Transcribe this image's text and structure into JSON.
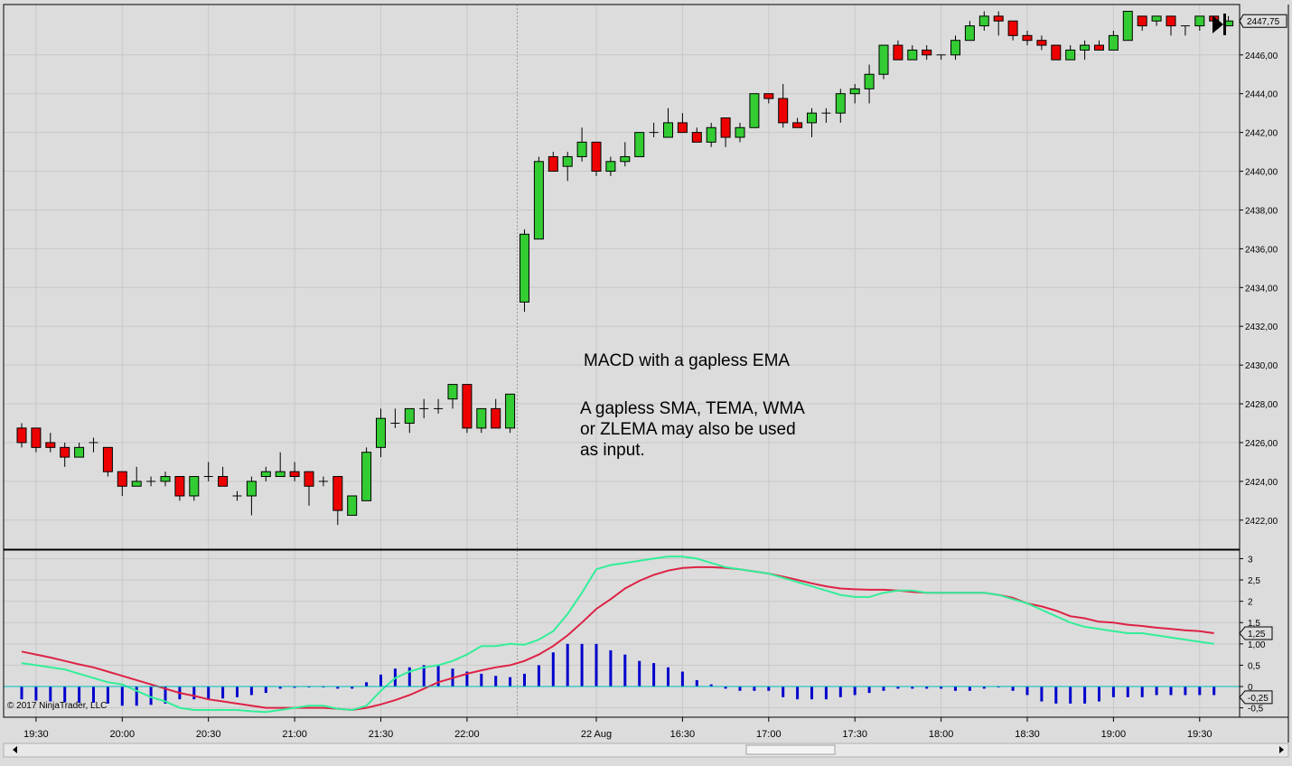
{
  "colors": {
    "background": "#dcdcdc",
    "grid": "#c8c8c8",
    "up_candle": "#33cc33",
    "down_candle": "#ee0000",
    "wick": "#000000",
    "macd_line": "#33ee99",
    "signal_line": "#dd2244",
    "histogram": "#0000cc",
    "zero_line": "#00bbbb"
  },
  "annotation": {
    "title": "MACD with a gapless EMA",
    "line1": "A gapless SMA, TEMA, WMA",
    "line2": "or ZLEMA may also be used",
    "line3": "as input."
  },
  "copyright": "© 2017 NinjaTrader, LLC",
  "toolbar": {
    "scroll_to_end_icon": "scroll-to-end-icon"
  },
  "chart_data": [
    {
      "type": "candlestick",
      "name": "price",
      "ylim": [
        2420.5,
        2448.6
      ],
      "y_ticks": [
        {
          "value": 2422,
          "label": "2422,00"
        },
        {
          "value": 2424,
          "label": "2424,00"
        },
        {
          "value": 2426,
          "label": "2426,00"
        },
        {
          "value": 2428,
          "label": "2428,00"
        },
        {
          "value": 2430,
          "label": "2430,00"
        },
        {
          "value": 2432,
          "label": "2432,00"
        },
        {
          "value": 2434,
          "label": "2434,00"
        },
        {
          "value": 2436,
          "label": "2436,00"
        },
        {
          "value": 2438,
          "label": "2438,00"
        },
        {
          "value": 2440,
          "label": "2440,00"
        },
        {
          "value": 2442,
          "label": "2442,00"
        },
        {
          "value": 2444,
          "label": "2444,00"
        },
        {
          "value": 2446,
          "label": "2446,00"
        }
      ],
      "last_price_label": "2447,75",
      "last_price": 2447.75,
      "x_ticks": [
        {
          "index": 1,
          "label": "19:30"
        },
        {
          "index": 7,
          "label": "20:00"
        },
        {
          "index": 13,
          "label": "20:30"
        },
        {
          "index": 19,
          "label": "21:00"
        },
        {
          "index": 25,
          "label": "21:30"
        },
        {
          "index": 31,
          "label": "22:00"
        },
        {
          "index": 40,
          "label": "22 Aug"
        },
        {
          "index": 46,
          "label": "16:30"
        },
        {
          "index": 52,
          "label": "17:00"
        },
        {
          "index": 58,
          "label": "17:30"
        },
        {
          "index": 64,
          "label": "18:00"
        },
        {
          "index": 70,
          "label": "18:30"
        },
        {
          "index": 76,
          "label": "19:00"
        },
        {
          "index": 82,
          "label": "19:30"
        }
      ],
      "session_break_index": 34.5,
      "candles": [
        [
          2426.75,
          2427.0,
          2425.75,
          2426.0
        ],
        [
          2426.75,
          2426.75,
          2425.5,
          2425.75
        ],
        [
          2426.0,
          2426.5,
          2425.5,
          2425.75
        ],
        [
          2425.75,
          2426.0,
          2424.75,
          2425.25
        ],
        [
          2425.25,
          2426.0,
          2425.25,
          2425.75
        ],
        [
          2426.0,
          2426.25,
          2425.5,
          2426.0
        ],
        [
          2425.75,
          2425.75,
          2424.25,
          2424.5
        ],
        [
          2424.5,
          2424.5,
          2423.25,
          2423.75
        ],
        [
          2423.75,
          2424.75,
          2423.75,
          2424.0
        ],
        [
          2424.0,
          2424.25,
          2423.75,
          2424.0
        ],
        [
          2424.0,
          2424.5,
          2423.75,
          2424.25
        ],
        [
          2424.25,
          2424.25,
          2423.0,
          2423.25
        ],
        [
          2423.25,
          2424.25,
          2423.0,
          2424.25
        ],
        [
          2424.25,
          2425.0,
          2424.0,
          2424.25
        ],
        [
          2424.25,
          2424.75,
          2423.75,
          2423.75
        ],
        [
          2423.25,
          2423.5,
          2423.0,
          2423.25
        ],
        [
          2423.25,
          2424.25,
          2422.25,
          2424.0
        ],
        [
          2424.25,
          2424.75,
          2424.0,
          2424.5
        ],
        [
          2424.25,
          2425.5,
          2424.25,
          2424.5
        ],
        [
          2424.5,
          2425.0,
          2424.0,
          2424.25
        ],
        [
          2424.5,
          2424.5,
          2422.75,
          2423.75
        ],
        [
          2424.0,
          2424.25,
          2423.75,
          2424.0
        ],
        [
          2424.25,
          2424.25,
          2421.75,
          2422.5
        ],
        [
          2422.25,
          2423.25,
          2422.25,
          2423.25
        ],
        [
          2423.0,
          2425.75,
          2423.0,
          2425.5
        ],
        [
          2425.75,
          2427.75,
          2425.25,
          2427.25
        ],
        [
          2427.0,
          2427.75,
          2426.75,
          2427.0
        ],
        [
          2427.0,
          2427.75,
          2426.5,
          2427.75
        ],
        [
          2427.75,
          2428.25,
          2427.25,
          2427.75
        ],
        [
          2427.75,
          2428.25,
          2427.5,
          2427.75
        ],
        [
          2428.25,
          2429.0,
          2427.75,
          2429.0
        ],
        [
          2429.0,
          2429.0,
          2426.5,
          2426.75
        ],
        [
          2426.75,
          2427.75,
          2426.5,
          2427.75
        ],
        [
          2427.75,
          2428.25,
          2426.75,
          2426.75
        ],
        [
          2426.75,
          2428.5,
          2426.5,
          2428.5
        ],
        [
          2433.25,
          2437.0,
          2432.75,
          2436.75
        ],
        [
          2436.5,
          2440.75,
          2436.5,
          2440.5
        ],
        [
          2440.75,
          2441.0,
          2440.0,
          2440.0
        ],
        [
          2440.25,
          2441.0,
          2439.5,
          2440.75
        ],
        [
          2440.75,
          2442.25,
          2440.5,
          2441.5
        ],
        [
          2441.5,
          2441.5,
          2439.75,
          2440.0
        ],
        [
          2440.0,
          2440.75,
          2439.75,
          2440.5
        ],
        [
          2440.5,
          2441.5,
          2440.25,
          2440.75
        ],
        [
          2440.75,
          2442.0,
          2440.75,
          2442.0
        ],
        [
          2442.0,
          2442.5,
          2441.75,
          2442.0
        ],
        [
          2441.75,
          2443.25,
          2441.75,
          2442.5
        ],
        [
          2442.5,
          2443.0,
          2442.0,
          2442.0
        ],
        [
          2442.0,
          2442.25,
          2441.5,
          2441.5
        ],
        [
          2441.5,
          2442.5,
          2441.25,
          2442.25
        ],
        [
          2442.75,
          2442.75,
          2441.25,
          2441.75
        ],
        [
          2441.75,
          2442.5,
          2441.5,
          2442.25
        ],
        [
          2442.25,
          2444.0,
          2442.25,
          2444.0
        ],
        [
          2444.0,
          2444.0,
          2443.5,
          2443.75
        ],
        [
          2443.75,
          2444.5,
          2442.25,
          2442.5
        ],
        [
          2442.5,
          2442.75,
          2442.25,
          2442.25
        ],
        [
          2442.5,
          2443.25,
          2441.75,
          2443.0
        ],
        [
          2443.0,
          2443.25,
          2442.5,
          2443.0
        ],
        [
          2443.0,
          2444.25,
          2442.5,
          2444.0
        ],
        [
          2444.0,
          2444.5,
          2443.5,
          2444.25
        ],
        [
          2444.25,
          2445.5,
          2443.5,
          2445.0
        ],
        [
          2445.0,
          2446.5,
          2444.75,
          2446.5
        ],
        [
          2446.5,
          2446.75,
          2445.75,
          2445.75
        ],
        [
          2445.75,
          2446.5,
          2445.75,
          2446.25
        ],
        [
          2446.25,
          2446.5,
          2445.75,
          2446.0
        ],
        [
          2446.0,
          2446.0,
          2445.75,
          2446.0
        ],
        [
          2446.0,
          2447.0,
          2445.75,
          2446.75
        ],
        [
          2446.75,
          2447.75,
          2446.75,
          2447.5
        ],
        [
          2447.5,
          2448.25,
          2447.25,
          2448.0
        ],
        [
          2448.0,
          2448.25,
          2447.0,
          2447.75
        ],
        [
          2447.75,
          2447.75,
          2446.75,
          2447.0
        ],
        [
          2447.0,
          2447.25,
          2446.5,
          2446.75
        ],
        [
          2446.75,
          2447.0,
          2446.25,
          2446.5
        ],
        [
          2446.5,
          2446.5,
          2445.75,
          2445.75
        ],
        [
          2445.75,
          2446.5,
          2445.75,
          2446.25
        ],
        [
          2446.25,
          2446.75,
          2445.75,
          2446.5
        ],
        [
          2446.5,
          2446.75,
          2446.25,
          2446.25
        ],
        [
          2446.25,
          2447.25,
          2446.25,
          2447.0
        ],
        [
          2446.75,
          2448.25,
          2446.75,
          2448.25
        ],
        [
          2448.0,
          2448.0,
          2447.25,
          2447.5
        ],
        [
          2447.75,
          2448.0,
          2447.5,
          2448.0
        ],
        [
          2448.0,
          2448.0,
          2447.0,
          2447.5
        ],
        [
          2447.5,
          2447.5,
          2447.0,
          2447.5
        ],
        [
          2447.5,
          2448.0,
          2447.25,
          2448.0
        ],
        [
          2448.0,
          2448.0,
          2447.5,
          2447.75
        ],
        [
          2447.5,
          2448.0,
          2447.5,
          2447.75
        ]
      ]
    },
    {
      "type": "line+bar",
      "name": "MACD",
      "ylim": [
        -0.72,
        3.2
      ],
      "y_ticks": [
        {
          "value": 3,
          "label": "3"
        },
        {
          "value": 2.5,
          "label": "2,5"
        },
        {
          "value": 2,
          "label": "2"
        },
        {
          "value": 1.5,
          "label": "1,5"
        },
        {
          "value": 1,
          "label": "1,00"
        },
        {
          "value": 0.5,
          "label": "0,5"
        },
        {
          "value": 0,
          "label": "0"
        },
        {
          "value": -0.5,
          "label": "-0,5"
        }
      ],
      "value_labels": [
        {
          "value": 1.25,
          "label": "1,25"
        },
        {
          "value": -0.25,
          "label": "-0,25"
        }
      ],
      "macd": [
        0.55,
        0.5,
        0.45,
        0.4,
        0.3,
        0.2,
        0.1,
        0.05,
        -0.1,
        -0.25,
        -0.35,
        -0.5,
        -0.55,
        -0.55,
        -0.55,
        -0.55,
        -0.58,
        -0.6,
        -0.55,
        -0.5,
        -0.45,
        -0.45,
        -0.52,
        -0.55,
        -0.45,
        -0.1,
        0.2,
        0.35,
        0.45,
        0.5,
        0.6,
        0.75,
        0.95,
        0.95,
        1.0,
        0.98,
        1.1,
        1.3,
        1.7,
        2.2,
        2.75,
        2.85,
        2.9,
        2.95,
        3.0,
        3.05,
        3.05,
        3.0,
        2.9,
        2.8,
        2.75,
        2.7,
        2.65,
        2.55,
        2.45,
        2.35,
        2.25,
        2.15,
        2.1,
        2.1,
        2.2,
        2.25,
        2.25,
        2.2,
        2.2,
        2.2,
        2.2,
        2.2,
        2.15,
        2.05,
        1.95,
        1.8,
        1.65,
        1.5,
        1.4,
        1.35,
        1.3,
        1.25,
        1.25,
        1.2,
        1.15,
        1.1,
        1.05,
        1.0
      ],
      "signal": [
        0.82,
        0.75,
        0.68,
        0.6,
        0.52,
        0.45,
        0.35,
        0.25,
        0.15,
        0.05,
        -0.05,
        -0.15,
        -0.22,
        -0.3,
        -0.35,
        -0.4,
        -0.45,
        -0.5,
        -0.5,
        -0.5,
        -0.5,
        -0.5,
        -0.52,
        -0.55,
        -0.5,
        -0.42,
        -0.32,
        -0.2,
        -0.05,
        0.1,
        0.2,
        0.3,
        0.38,
        0.45,
        0.5,
        0.6,
        0.75,
        0.95,
        1.2,
        1.5,
        1.82,
        2.05,
        2.3,
        2.48,
        2.62,
        2.72,
        2.78,
        2.8,
        2.8,
        2.78,
        2.75,
        2.7,
        2.65,
        2.58,
        2.5,
        2.42,
        2.35,
        2.3,
        2.28,
        2.27,
        2.27,
        2.25,
        2.22,
        2.2,
        2.2,
        2.2,
        2.2,
        2.2,
        2.15,
        2.08,
        1.95,
        1.88,
        1.78,
        1.65,
        1.6,
        1.52,
        1.5,
        1.45,
        1.42,
        1.38,
        1.35,
        1.32,
        1.3,
        1.25
      ],
      "histogram": [
        -0.3,
        -0.33,
        -0.35,
        -0.37,
        -0.38,
        -0.38,
        -0.4,
        -0.45,
        -0.45,
        -0.43,
        -0.4,
        -0.3,
        -0.3,
        -0.3,
        -0.28,
        -0.25,
        -0.2,
        -0.15,
        -0.05,
        -0.03,
        0.0,
        0.0,
        -0.05,
        -0.05,
        0.1,
        0.28,
        0.42,
        0.45,
        0.5,
        0.5,
        0.42,
        0.35,
        0.3,
        0.25,
        0.22,
        0.3,
        0.5,
        0.8,
        1.0,
        1.0,
        1.0,
        0.85,
        0.75,
        0.6,
        0.55,
        0.45,
        0.35,
        0.15,
        0.05,
        -0.05,
        -0.1,
        -0.1,
        -0.1,
        -0.25,
        -0.3,
        -0.3,
        -0.3,
        -0.25,
        -0.2,
        -0.15,
        -0.1,
        -0.05,
        -0.05,
        -0.05,
        -0.05,
        -0.1,
        -0.1,
        -0.05,
        0.0,
        -0.1,
        -0.2,
        -0.35,
        -0.4,
        -0.4,
        -0.4,
        -0.35,
        -0.25,
        -0.25,
        -0.25,
        -0.2,
        -0.2,
        -0.2,
        -0.2,
        -0.2
      ]
    }
  ]
}
